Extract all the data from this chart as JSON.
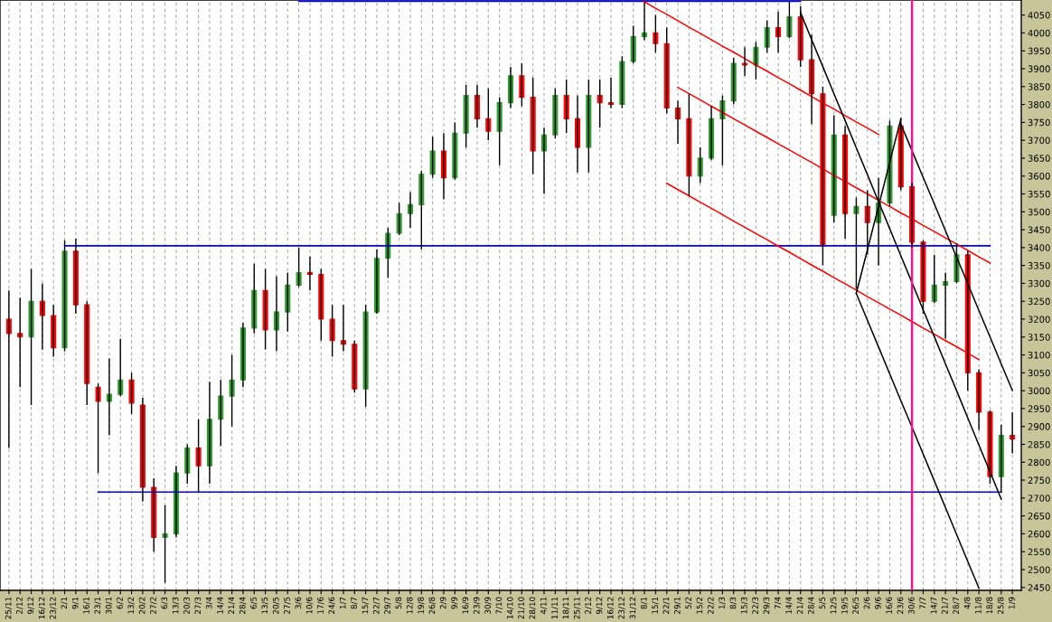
{
  "chart_data": {
    "type": "candlestick",
    "categories": [
      "25/11",
      "2/12",
      "9/12",
      "16/12",
      "23/12",
      "2/1",
      "9/1",
      "16/1",
      "23/1",
      "30/1",
      "6/2",
      "13/2",
      "20/2",
      "27/2",
      "6/3",
      "13/3",
      "20/3",
      "27/3",
      "3/4",
      "14/4",
      "21/4",
      "28/4",
      "6/5",
      "13/5",
      "20/5",
      "27/5",
      "3/6",
      "10/6",
      "17/6",
      "24/6",
      "1/7",
      "8/7",
      "15/7",
      "22/7",
      "29/7",
      "5/8",
      "12/8",
      "19/8",
      "26/8",
      "2/9",
      "9/9",
      "16/9",
      "23/9",
      "30/9",
      "7/10",
      "14/10",
      "21/10",
      "28/10",
      "4/11",
      "11/11",
      "18/11",
      "25/11",
      "2/12",
      "9/12",
      "16/12",
      "23/12",
      "31/12",
      "8/1",
      "15/1",
      "22/1",
      "29/1",
      "5/2",
      "15/2",
      "22/2",
      "1/3",
      "8/3",
      "15/3",
      "22/3",
      "29/3",
      "7/4",
      "14/4",
      "21/4",
      "28/4",
      "5/5",
      "12/5",
      "19/5",
      "26/5",
      "2/6",
      "9/6",
      "16/6",
      "23/6",
      "30/6",
      "7/7",
      "14/7",
      "21/7",
      "28/7",
      "4/8",
      "11/8",
      "18/8",
      "25/8",
      "1/9"
    ],
    "ohlc": [
      [
        3200,
        3280,
        2840,
        3160
      ],
      [
        3160,
        3260,
        3010,
        3150
      ],
      [
        3150,
        3340,
        2960,
        3250
      ],
      [
        3250,
        3300,
        3115,
        3210
      ],
      [
        3210,
        3240,
        3095,
        3120
      ],
      [
        3120,
        3420,
        3110,
        3390
      ],
      [
        3390,
        3425,
        3215,
        3240
      ],
      [
        3240,
        3250,
        2960,
        3020
      ],
      [
        3010,
        3020,
        2770,
        2970
      ],
      [
        2970,
        3090,
        2875,
        2990
      ],
      [
        2990,
        3145,
        2985,
        3030
      ],
      [
        3030,
        3050,
        2935,
        2965
      ],
      [
        2960,
        2980,
        2690,
        2730
      ],
      [
        2730,
        2755,
        2550,
        2590
      ],
      [
        2590,
        2680,
        2463,
        2600
      ],
      [
        2600,
        2790,
        2590,
        2770
      ],
      [
        2770,
        2850,
        2740,
        2840
      ],
      [
        2840,
        2920,
        2715,
        2790
      ],
      [
        2790,
        3025,
        2740,
        2920
      ],
      [
        2920,
        3030,
        2845,
        2985
      ],
      [
        2985,
        3100,
        2900,
        3030
      ],
      [
        3030,
        3190,
        3010,
        3175
      ],
      [
        3175,
        3355,
        3160,
        3280
      ],
      [
        3280,
        3340,
        3115,
        3170
      ],
      [
        3170,
        3320,
        3110,
        3220
      ],
      [
        3220,
        3330,
        3165,
        3295
      ],
      [
        3295,
        3400,
        3290,
        3330
      ],
      [
        3330,
        3375,
        3280,
        3325
      ],
      [
        3325,
        3340,
        3140,
        3200
      ],
      [
        3200,
        3240,
        3095,
        3140
      ],
      [
        3140,
        3240,
        3110,
        3130
      ],
      [
        3130,
        3140,
        2995,
        3005
      ],
      [
        3005,
        3240,
        2955,
        3220
      ],
      [
        3220,
        3395,
        3215,
        3370
      ],
      [
        3370,
        3455,
        3315,
        3440
      ],
      [
        3440,
        3525,
        3435,
        3495
      ],
      [
        3495,
        3555,
        3455,
        3520
      ],
      [
        3520,
        3615,
        3395,
        3605
      ],
      [
        3605,
        3710,
        3595,
        3670
      ],
      [
        3670,
        3720,
        3535,
        3595
      ],
      [
        3595,
        3750,
        3590,
        3720
      ],
      [
        3720,
        3855,
        3680,
        3825
      ],
      [
        3825,
        3855,
        3735,
        3760
      ],
      [
        3760,
        3845,
        3700,
        3725
      ],
      [
        3725,
        3820,
        3630,
        3805
      ],
      [
        3805,
        3905,
        3790,
        3880
      ],
      [
        3880,
        3915,
        3795,
        3820
      ],
      [
        3820,
        3875,
        3605,
        3670
      ],
      [
        3670,
        3735,
        3550,
        3715
      ],
      [
        3715,
        3845,
        3705,
        3825
      ],
      [
        3825,
        3870,
        3720,
        3760
      ],
      [
        3760,
        3825,
        3610,
        3680
      ],
      [
        3680,
        3870,
        3610,
        3825
      ],
      [
        3825,
        3870,
        3735,
        3805
      ],
      [
        3805,
        3875,
        3790,
        3800
      ],
      [
        3800,
        3935,
        3790,
        3920
      ],
      [
        3920,
        4020,
        3915,
        3990
      ],
      [
        3990,
        4085,
        3980,
        4000
      ],
      [
        4000,
        4050,
        3945,
        3970
      ],
      [
        3970,
        4015,
        3775,
        3790
      ],
      [
        3790,
        3810,
        3690,
        3760
      ],
      [
        3760,
        3830,
        3545,
        3600
      ],
      [
        3600,
        3680,
        3580,
        3650
      ],
      [
        3650,
        3795,
        3645,
        3760
      ],
      [
        3760,
        3825,
        3630,
        3810
      ],
      [
        3810,
        3930,
        3800,
        3915
      ],
      [
        3915,
        3960,
        3880,
        3910
      ],
      [
        3910,
        3975,
        3870,
        3960
      ],
      [
        3960,
        4035,
        3945,
        4015
      ],
      [
        4015,
        4060,
        3945,
        3990
      ],
      [
        3990,
        4087,
        3985,
        4045
      ],
      [
        4045,
        4075,
        3905,
        3925
      ],
      [
        3925,
        3995,
        3745,
        3830
      ],
      [
        3830,
        3850,
        3350,
        3405
      ],
      [
        3490,
        3770,
        3470,
        3715
      ],
      [
        3715,
        3740,
        3425,
        3495
      ],
      [
        3495,
        3540,
        3285,
        3515
      ],
      [
        3515,
        3560,
        3380,
        3470
      ],
      [
        3470,
        3595,
        3350,
        3525
      ],
      [
        3525,
        3755,
        3515,
        3740
      ],
      [
        3740,
        3762,
        3560,
        3570
      ],
      [
        3570,
        3580,
        3400,
        3415
      ],
      [
        3415,
        3420,
        3215,
        3250
      ],
      [
        3250,
        3380,
        3245,
        3295
      ],
      [
        3295,
        3330,
        3145,
        3305
      ],
      [
        3305,
        3412,
        3300,
        3380
      ],
      [
        3380,
        3390,
        3000,
        3050
      ],
      [
        3050,
        3060,
        2890,
        2940
      ],
      [
        2940,
        2945,
        2740,
        2760
      ],
      [
        2760,
        2905,
        2715,
        2875
      ],
      [
        2875,
        2940,
        2825,
        2865
      ]
    ],
    "colors": [
      "#ff0000",
      "#ff0000",
      "#2e9a2e",
      "#ff0000",
      "#ff0000",
      "#2e9a2e",
      "#ff0000",
      "#ff0000",
      "#ff0000",
      "#2e9a2e",
      "#2e9a2e",
      "#ff0000",
      "#ff0000",
      "#ff0000",
      "#2e9a2e",
      "#2e9a2e",
      "#2e9a2e",
      "#ff0000",
      "#2e9a2e",
      "#2e9a2e",
      "#2e9a2e",
      "#2e9a2e",
      "#2e9a2e",
      "#ff0000",
      "#2e9a2e",
      "#2e9a2e",
      "#2e9a2e",
      "#ff0000",
      "#ff0000",
      "#ff0000",
      "#ff0000",
      "#ff0000",
      "#2e9a2e",
      "#2e9a2e",
      "#2e9a2e",
      "#2e9a2e",
      "#2e9a2e",
      "#2e9a2e",
      "#2e9a2e",
      "#ff0000",
      "#2e9a2e",
      "#2e9a2e",
      "#ff0000",
      "#ff0000",
      "#2e9a2e",
      "#2e9a2e",
      "#ff0000",
      "#ff0000",
      "#2e9a2e",
      "#2e9a2e",
      "#ff0000",
      "#ff0000",
      "#2e9a2e",
      "#ff0000",
      "#ff0000",
      "#2e9a2e",
      "#2e9a2e",
      "#2e9a2e",
      "#ff0000",
      "#ff0000",
      "#ff0000",
      "#ff0000",
      "#2e9a2e",
      "#2e9a2e",
      "#2e9a2e",
      "#2e9a2e",
      "#ff0000",
      "#2e9a2e",
      "#2e9a2e",
      "#ff0000",
      "#2e9a2e",
      "#ff0000",
      "#ff0000",
      "#ff0000",
      "#2e9a2e",
      "#ff0000",
      "#2e9a2e",
      "#ff0000",
      "#2e9a2e",
      "#2e9a2e",
      "#ff0000",
      "#ff0000",
      "#ff0000",
      "#2e9a2e",
      "#2e9a2e",
      "#2e9a2e",
      "#ff0000",
      "#ff0000",
      "#ff0000",
      "#2e9a2e",
      "#ff0000"
    ],
    "series": [
      {
        "type": "line",
        "color": "#0000ff",
        "values": [
          null,
          null,
          null,
          null,
          null,
          null,
          null,
          null,
          null,
          null,
          null,
          null,
          null,
          null,
          null,
          null,
          null,
          null,
          null,
          null,
          null,
          null,
          null,
          null,
          null,
          null,
          4088,
          4088,
          4088,
          4088,
          4088,
          4088,
          4088,
          4088,
          4088,
          4088,
          4088,
          4088,
          4088,
          4088,
          4088,
          4088,
          4088,
          4088,
          4088,
          4088,
          4088,
          4088,
          4088,
          4088,
          4088,
          4088,
          4088,
          4088,
          4088,
          4088,
          4088,
          4088,
          4088,
          4088,
          4088,
          4088,
          4088,
          4088,
          4088,
          4088,
          4088,
          4088,
          4088,
          4088,
          4088,
          4088,
          null,
          null,
          null,
          null,
          null,
          null,
          null,
          null,
          null,
          null,
          null,
          null,
          null,
          null,
          null,
          null,
          null,
          null,
          null
        ]
      },
      {
        "type": "line",
        "color": "#0000ff",
        "values": [
          null,
          null,
          null,
          null,
          null,
          3405,
          3405,
          3405,
          3405,
          3405,
          3405,
          3405,
          3405,
          3405,
          3405,
          3405,
          3405,
          3405,
          3405,
          3405,
          3405,
          3405,
          3405,
          3405,
          3405,
          3405,
          3405,
          3405,
          3405,
          3405,
          3405,
          3405,
          3405,
          3405,
          3405,
          3405,
          3405,
          3405,
          3405,
          3405,
          3405,
          3405,
          3405,
          3405,
          3405,
          3405,
          3405,
          3405,
          3405,
          3405,
          3405,
          3405,
          3405,
          3405,
          3405,
          3405,
          3405,
          3405,
          3405,
          3405,
          3405,
          3405,
          3405,
          3405,
          3405,
          3405,
          3405,
          3405,
          3405,
          3405,
          3405,
          3405,
          3405,
          3405,
          3405,
          3405,
          3405,
          3405,
          3405,
          3405,
          3405,
          3405,
          3405,
          3405,
          3405,
          3405,
          3405,
          3405,
          3405,
          null,
          null
        ]
      },
      {
        "type": "line",
        "color": "#0000ff",
        "values": [
          null,
          null,
          null,
          null,
          null,
          null,
          null,
          null,
          2717,
          2717,
          2717,
          2717,
          2717,
          2717,
          2717,
          2717,
          2717,
          2717,
          2717,
          2717,
          2717,
          2717,
          2717,
          2717,
          2717,
          2717,
          2717,
          2717,
          2717,
          2717,
          2717,
          2717,
          2717,
          2717,
          2717,
          2717,
          2717,
          2717,
          2717,
          2717,
          2717,
          2717,
          2717,
          2717,
          2717,
          2717,
          2717,
          2717,
          2717,
          2717,
          2717,
          2717,
          2717,
          2717,
          2717,
          2717,
          2717,
          2717,
          2717,
          2717,
          2717,
          2717,
          2717,
          2717,
          2717,
          2717,
          2717,
          2717,
          2717,
          2717,
          2717,
          2717,
          2717,
          2717,
          2717,
          2717,
          2717,
          2717,
          2717,
          2717,
          2717,
          2717,
          2717,
          2717,
          2717,
          2717,
          2717,
          2717,
          2717,
          2717,
          null
        ]
      },
      {
        "type": "line",
        "color": "#ff0000",
        "values": [
          null,
          null,
          null,
          null,
          null,
          null,
          null,
          null,
          null,
          null,
          null,
          null,
          null,
          null,
          null,
          null,
          null,
          null,
          null,
          null,
          null,
          null,
          null,
          null,
          null,
          null,
          null,
          null,
          null,
          null,
          null,
          null,
          null,
          null,
          null,
          null,
          null,
          null,
          null,
          null,
          null,
          null,
          null,
          null,
          null,
          null,
          null,
          null,
          null,
          null,
          null,
          null,
          null,
          null,
          null,
          null,
          null,
          4087,
          4069,
          4052,
          4034,
          4016,
          3999,
          3981,
          3963,
          3946,
          3928,
          3910,
          3893,
          3875,
          3858,
          3840,
          3822,
          3804,
          3787,
          3769,
          3751,
          3734,
          3716,
          null,
          null,
          null,
          null,
          null,
          null,
          null,
          null,
          null,
          null,
          null,
          null
        ]
      },
      {
        "type": "line",
        "color": "#ff0000",
        "values": [
          null,
          null,
          null,
          null,
          null,
          null,
          null,
          null,
          null,
          null,
          null,
          null,
          null,
          null,
          null,
          null,
          null,
          null,
          null,
          null,
          null,
          null,
          null,
          null,
          null,
          null,
          null,
          null,
          null,
          null,
          null,
          null,
          null,
          null,
          null,
          null,
          null,
          null,
          null,
          null,
          null,
          null,
          null,
          null,
          null,
          null,
          null,
          null,
          null,
          null,
          null,
          null,
          null,
          null,
          null,
          null,
          null,
          null,
          null,
          null,
          3848,
          3830,
          3813,
          3795,
          3778,
          3760,
          3743,
          3725,
          3708,
          3690,
          3673,
          3655,
          3638,
          3620,
          3602,
          3585,
          3567,
          3550,
          3532,
          3515,
          3497,
          3480,
          3462,
          3445,
          3427,
          3410,
          3392,
          3374,
          3357,
          null,
          null
        ]
      },
      {
        "type": "line",
        "color": "#ff0000",
        "values": [
          null,
          null,
          null,
          null,
          null,
          null,
          null,
          null,
          null,
          null,
          null,
          null,
          null,
          null,
          null,
          null,
          null,
          null,
          null,
          null,
          null,
          null,
          null,
          null,
          null,
          null,
          null,
          null,
          null,
          null,
          null,
          null,
          null,
          null,
          null,
          null,
          null,
          null,
          null,
          null,
          null,
          null,
          null,
          null,
          null,
          null,
          null,
          null,
          null,
          null,
          null,
          null,
          null,
          null,
          null,
          null,
          null,
          null,
          null,
          3580,
          3562,
          3545,
          3527,
          3510,
          3492,
          3474,
          3457,
          3439,
          3422,
          3404,
          3387,
          3369,
          3351,
          3334,
          3316,
          3299,
          3281,
          3263,
          3246,
          3228,
          3211,
          3193,
          3175,
          3158,
          3140,
          3123,
          3105,
          3087,
          null,
          null,
          null
        ]
      },
      {
        "type": "line",
        "color": "#000000",
        "values": [
          null,
          null,
          null,
          null,
          null,
          null,
          null,
          null,
          null,
          null,
          null,
          null,
          null,
          null,
          null,
          null,
          null,
          null,
          null,
          null,
          null,
          null,
          null,
          null,
          null,
          null,
          null,
          null,
          null,
          null,
          null,
          null,
          null,
          null,
          null,
          null,
          null,
          null,
          null,
          null,
          null,
          null,
          null,
          null,
          null,
          null,
          null,
          null,
          null,
          null,
          null,
          null,
          null,
          null,
          null,
          null,
          null,
          null,
          null,
          null,
          null,
          null,
          null,
          null,
          null,
          null,
          null,
          null,
          null,
          null,
          null,
          4057,
          3981,
          3906,
          3830,
          3755,
          3679,
          3604,
          3528,
          3453,
          3377,
          3302,
          3226,
          3151,
          3075,
          3000,
          2924,
          2848,
          2773,
          2697,
          null
        ]
      },
      {
        "type": "line",
        "color": "#000000",
        "values": [
          null,
          null,
          null,
          null,
          null,
          null,
          null,
          null,
          null,
          null,
          null,
          null,
          null,
          null,
          null,
          null,
          null,
          null,
          null,
          null,
          null,
          null,
          null,
          null,
          null,
          null,
          null,
          null,
          null,
          null,
          null,
          null,
          null,
          null,
          null,
          null,
          null,
          null,
          null,
          null,
          null,
          null,
          null,
          null,
          null,
          null,
          null,
          null,
          null,
          null,
          null,
          null,
          null,
          null,
          null,
          null,
          null,
          null,
          null,
          null,
          null,
          null,
          null,
          null,
          null,
          null,
          null,
          null,
          null,
          null,
          null,
          null,
          null,
          null,
          null,
          null,
          null,
          null,
          null,
          null,
          3745,
          3671,
          3596,
          3522,
          3447,
          3373,
          3299,
          3224,
          3150,
          3075,
          3001
        ]
      },
      {
        "type": "line",
        "color": "#000000",
        "values": [
          null,
          null,
          null,
          null,
          null,
          null,
          null,
          null,
          null,
          null,
          null,
          null,
          null,
          null,
          null,
          null,
          null,
          null,
          null,
          null,
          null,
          null,
          null,
          null,
          null,
          null,
          null,
          null,
          null,
          null,
          null,
          null,
          null,
          null,
          null,
          null,
          null,
          null,
          null,
          null,
          null,
          null,
          null,
          null,
          null,
          null,
          null,
          null,
          null,
          null,
          null,
          null,
          null,
          null,
          null,
          null,
          null,
          null,
          null,
          null,
          null,
          null,
          null,
          null,
          null,
          null,
          null,
          null,
          null,
          null,
          null,
          null,
          null,
          null,
          null,
          null,
          3272,
          3197,
          3122,
          3047,
          2972,
          2898,
          2823,
          2748,
          2673,
          2598,
          2523,
          2448,
          null,
          null,
          null
        ]
      },
      {
        "type": "line",
        "color": "#000000",
        "values": [
          null,
          null,
          null,
          null,
          null,
          null,
          null,
          null,
          null,
          null,
          null,
          null,
          null,
          null,
          null,
          null,
          null,
          null,
          null,
          null,
          null,
          null,
          null,
          null,
          null,
          null,
          null,
          null,
          null,
          null,
          null,
          null,
          null,
          null,
          null,
          null,
          null,
          null,
          null,
          null,
          null,
          null,
          null,
          null,
          null,
          null,
          null,
          null,
          null,
          null,
          null,
          null,
          null,
          null,
          null,
          null,
          null,
          null,
          null,
          null,
          null,
          null,
          null,
          null,
          null,
          null,
          null,
          null,
          null,
          null,
          null,
          null,
          null,
          null,
          null,
          null,
          3272,
          3394,
          3516,
          3638,
          3760,
          null,
          null,
          null,
          null,
          null,
          null,
          null,
          null,
          null,
          null
        ]
      }
    ],
    "ref_lines": [
      {
        "axis": "x",
        "value": "30/6",
        "color": "#f0158c"
      }
    ],
    "ylim": [
      2442,
      4092
    ],
    "yticks": [
      2450,
      2500,
      2550,
      2600,
      2650,
      2700,
      2750,
      2800,
      2850,
      2900,
      2950,
      3000,
      3050,
      3100,
      3150,
      3200,
      3250,
      3300,
      3350,
      3400,
      3450,
      3500,
      3550,
      3600,
      3650,
      3700,
      3750,
      3800,
      3850,
      3900,
      3950,
      4000,
      4050
    ],
    "grid": "x"
  }
}
